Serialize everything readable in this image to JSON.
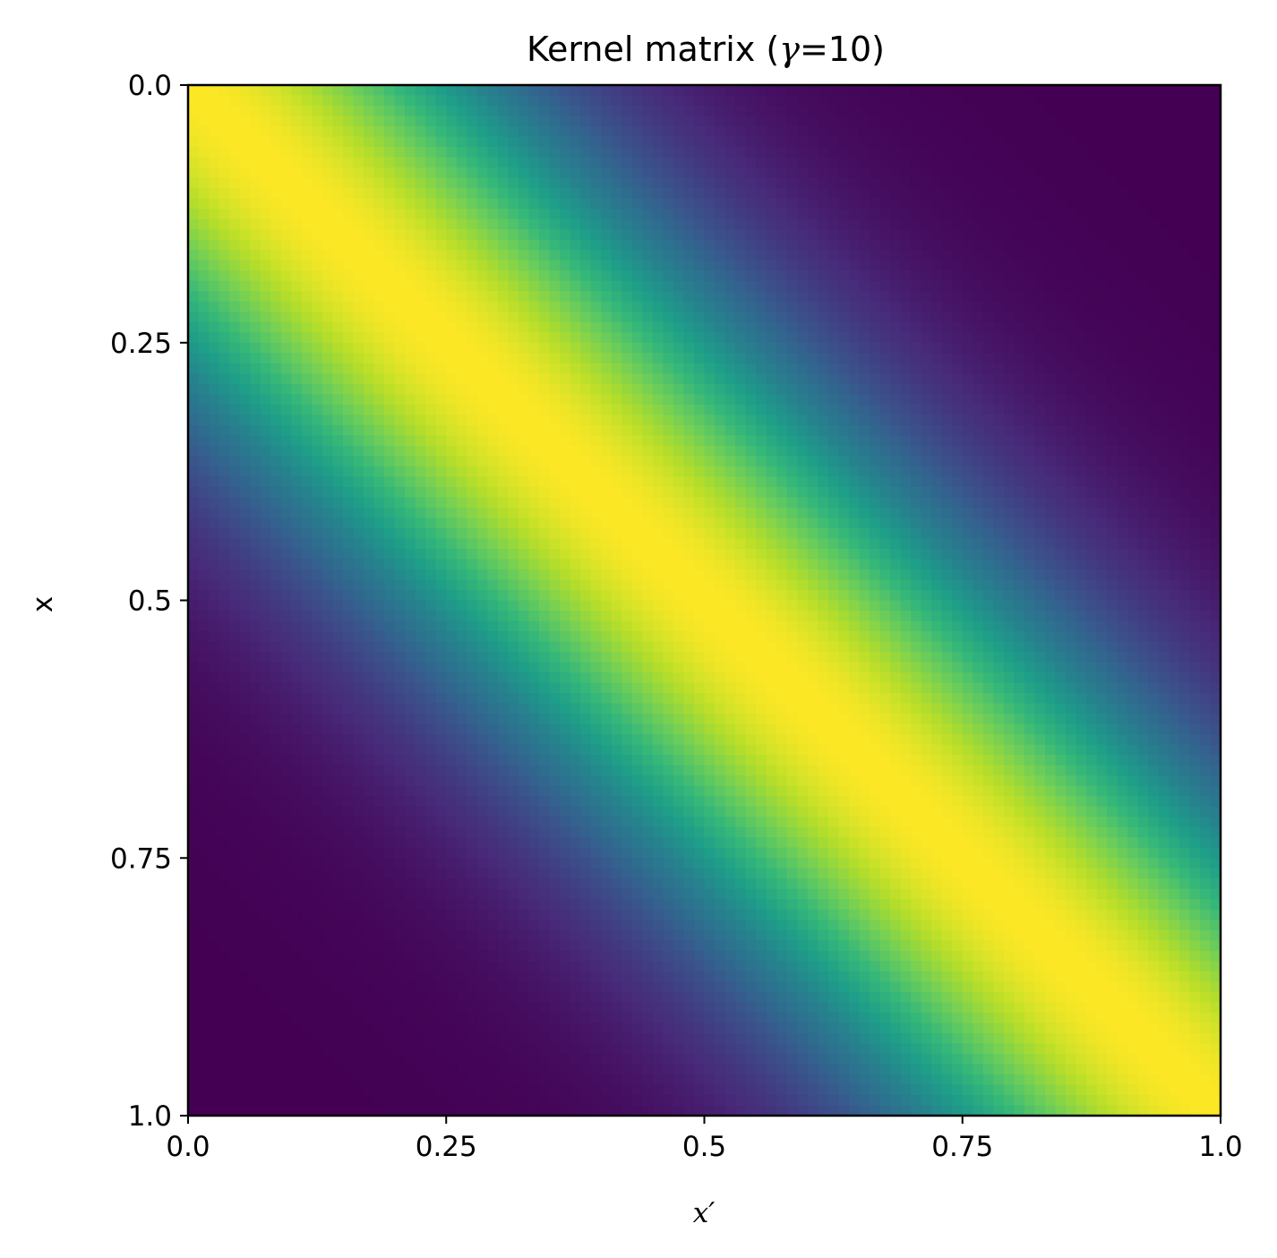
{
  "chart_data": {
    "type": "heatmap",
    "title": "Kernel matrix (γ=10)",
    "title_parts": {
      "before": "Kernel matrix (",
      "symbol": "γ",
      "after": "=10)"
    },
    "xlabel": "x′",
    "ylabel": "x",
    "kernel": "rbf",
    "gamma": 10,
    "grid_size": 100,
    "x_range": [
      0.0,
      1.0
    ],
    "y_range": [
      0.0,
      1.0
    ],
    "y_axis_inverted": true,
    "colormap": "viridis",
    "value_range": [
      0,
      1
    ],
    "x_ticks": [
      {
        "value": 0.0,
        "label": "0.0"
      },
      {
        "value": 0.25,
        "label": "0.25"
      },
      {
        "value": 0.5,
        "label": "0.5"
      },
      {
        "value": 0.75,
        "label": "0.75"
      },
      {
        "value": 1.0,
        "label": "1.0"
      }
    ],
    "y_ticks": [
      {
        "value": 0.0,
        "label": "0.0"
      },
      {
        "value": 0.25,
        "label": "0.25"
      },
      {
        "value": 0.5,
        "label": "0.5"
      },
      {
        "value": 0.75,
        "label": "0.75"
      },
      {
        "value": 1.0,
        "label": "1.0"
      }
    ],
    "grid": false,
    "colorbar": false
  },
  "colors": {
    "viridis_stops": [
      "#440154",
      "#482878",
      "#3e4989",
      "#31688e",
      "#26828e",
      "#1f9e89",
      "#35b779",
      "#6ece58",
      "#b5de2b",
      "#fde725"
    ]
  }
}
